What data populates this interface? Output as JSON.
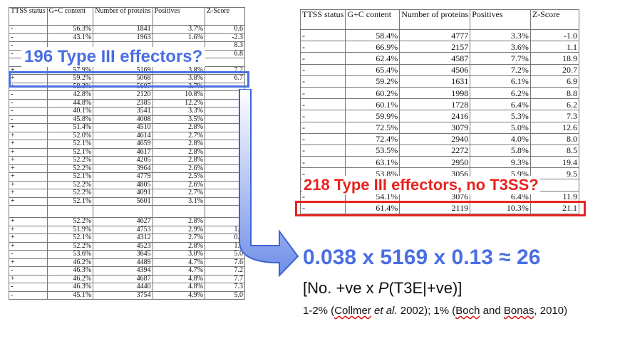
{
  "left_table": {
    "headers": [
      "TTSS status",
      "G+C content",
      "Number of proteins",
      "Positives",
      "Z-Score"
    ],
    "rows": [
      [
        "-",
        "56.3%",
        "1841",
        "3.7%",
        "0.6"
      ],
      [
        "-",
        "43.1%",
        "1963",
        "1.6%",
        "-2.3"
      ],
      [
        "-",
        "",
        "",
        "",
        "8.3"
      ],
      [
        "-",
        "",
        "",
        "",
        "6.8"
      ],
      [
        "",
        "",
        "",
        "",
        ""
      ],
      [
        "+",
        "57.9%",
        "5169",
        "3.8%",
        "7.2"
      ],
      [
        "+",
        "59.2%",
        "5068",
        "3.8%",
        "6.7"
      ],
      [
        "+",
        "58.3%",
        "5607",
        "3.7%",
        ""
      ],
      [
        "-",
        "42.8%",
        "2120",
        "10.8%",
        "1"
      ],
      [
        "-",
        "44.8%",
        "2385",
        "12.2%",
        "2"
      ],
      [
        "-",
        "40.1%",
        "3541",
        "3.3%",
        ""
      ],
      [
        "-",
        "45.8%",
        "4008",
        "3.5%",
        ""
      ],
      [
        "+",
        "51.4%",
        "4510",
        "2.8%",
        ""
      ],
      [
        "+",
        "52.0%",
        "4614",
        "2.7%",
        ""
      ],
      [
        "+",
        "52.1%",
        "4659",
        "2.8%",
        ""
      ],
      [
        "+",
        "52.1%",
        "4617",
        "2.8%",
        ""
      ],
      [
        "+",
        "52.2%",
        "4205",
        "2.8%",
        ""
      ],
      [
        "+",
        "52.2%",
        "3964",
        "2.6%",
        ""
      ],
      [
        "+",
        "52.1%",
        "4779",
        "2.5%",
        ""
      ],
      [
        "+",
        "52.2%",
        "4805",
        "2.6%",
        ""
      ],
      [
        "+",
        "52.2%",
        "4091",
        "2.7%",
        ""
      ],
      [
        "+",
        "52.1%",
        "5601",
        "3.1%",
        ""
      ],
      [
        "",
        "",
        "",
        "",
        ""
      ],
      [
        "+",
        "52.2%",
        "4627",
        "2.8%",
        "1"
      ],
      [
        "+",
        "51.9%",
        "4753",
        "2.9%",
        "1.9"
      ],
      [
        "+",
        "52.1%",
        "4312",
        "2.7%",
        "0.8"
      ],
      [
        "+",
        "52.2%",
        "4523",
        "2.8%",
        "1.8"
      ],
      [
        "-",
        "53.6%",
        "3645",
        "3.0%",
        "5.0"
      ],
      [
        "+",
        "46.2%",
        "4489",
        "4.7%",
        "7.6"
      ],
      [
        "-",
        "46.3%",
        "4394",
        "4.7%",
        "7.2"
      ],
      [
        "+",
        "46.2%",
        "4687",
        "4.8%",
        "7.7"
      ],
      [
        "-",
        "46.3%",
        "4440",
        "4.8%",
        "7.3"
      ],
      [
        "-",
        "45.1%",
        "3754",
        "4.9%",
        "5.0"
      ]
    ]
  },
  "right_table": {
    "headers": [
      "TTSS status",
      "G+C content",
      "Number of proteins",
      "Positives",
      "Z-Score"
    ],
    "rows": [
      [
        "-",
        "58.4%",
        "4777",
        "3.3%",
        "-1.0"
      ],
      [
        "-",
        "66.9%",
        "2157",
        "3.6%",
        "1.1"
      ],
      [
        "-",
        "62.4%",
        "4587",
        "7.7%",
        "18.9"
      ],
      [
        "-",
        "65.4%",
        "4506",
        "7.2%",
        "20.7"
      ],
      [
        "-",
        "59.2%",
        "1631",
        "6.1%",
        "6.9"
      ],
      [
        "-",
        "60.2%",
        "1998",
        "6.2%",
        "8.8"
      ],
      [
        "-",
        "60.1%",
        "1728",
        "6.4%",
        "6.2"
      ],
      [
        "-",
        "59.9%",
        "2416",
        "5.3%",
        "7.3"
      ],
      [
        "-",
        "72.5%",
        "3079",
        "5.0%",
        "12.6"
      ],
      [
        "-",
        "72.4%",
        "2940",
        "4.0%",
        "8.0"
      ],
      [
        "-",
        "53.5%",
        "2272",
        "5.8%",
        "8.5"
      ],
      [
        "-",
        "63.1%",
        "2950",
        "9.3%",
        "19.4"
      ],
      [
        "-",
        "53.8%",
        "3056",
        "5.9%",
        "9.5"
      ],
      [
        "-",
        "",
        "",
        "",
        ""
      ],
      [
        "-",
        "54.1%",
        "3076",
        "6.4%",
        "11.9"
      ],
      [
        "-",
        "61.4%",
        "2119",
        "10.3%",
        "21.1"
      ]
    ]
  },
  "blue_callout": "196 Type III effectors?",
  "red_callout": "218 Type III effectors, no T3SS?",
  "calculation": "0.038 x 5169 x 0.13 ≈ 26",
  "formula": {
    "open": "[No. +ve x ",
    "p": "P",
    "rest": "(T3E|+ve)]"
  },
  "references": {
    "part1": "1-2% (",
    "collmer": "Collmer",
    "etal": " et al.",
    "part2": " 2002); 1% (",
    "boch": "Boch",
    "part3": " and ",
    "bonas": "Bonas",
    "part4": ", 2010)"
  },
  "colors": {
    "blue": "#4a6fe3",
    "red": "#e8241f"
  }
}
